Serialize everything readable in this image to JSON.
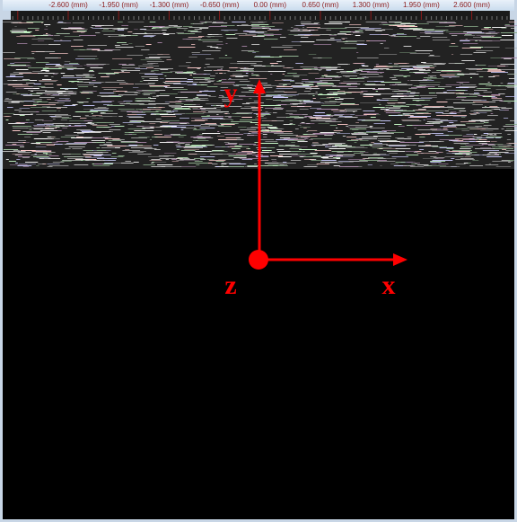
{
  "ruler": {
    "labels": [
      "-2.600 (mm)",
      "-1.950 (mm)",
      "-1.300 (mm)",
      "-0.650 (mm)",
      "0.00 (mm)",
      "0.650 (mm)",
      "1.300 (mm)",
      "1.950 (mm)",
      "2.600 (mm)"
    ]
  },
  "axes": {
    "y": "y",
    "z": "z",
    "x": "x"
  }
}
